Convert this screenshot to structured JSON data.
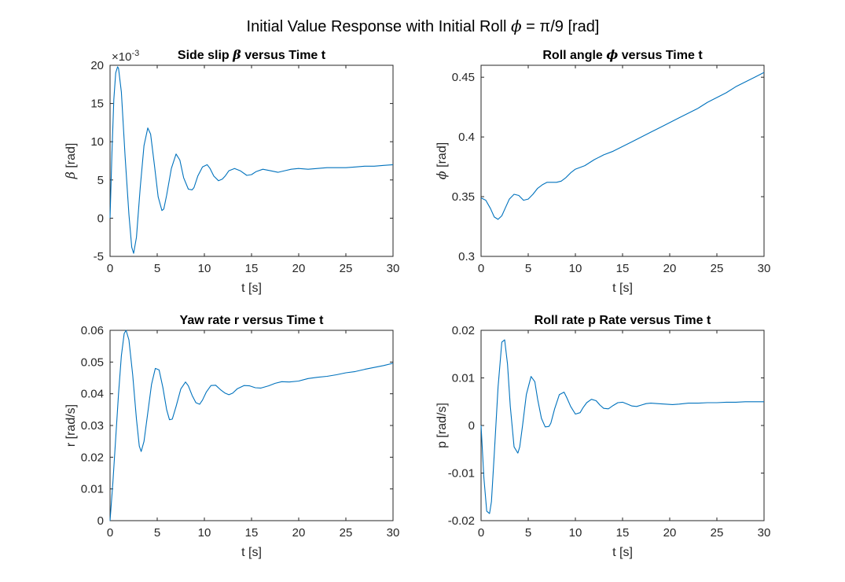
{
  "figure": {
    "title_prefix": "Initial Value Response with Initial Roll ",
    "title_symbol": "ϕ",
    "title_suffix": " = π/9 [rad]"
  },
  "colors": {
    "line": "#0072BD",
    "axes": "#262626",
    "background": "#ffffff"
  },
  "chart_data": [
    {
      "type": "line",
      "title_pre": "Side slip ",
      "title_sym": "β",
      "title_post": " versus Time t",
      "xlabel": "t [s]",
      "ylabel_sym": "β",
      "ylabel_post": " [rad]",
      "exponent_label": "×10",
      "exponent_power": "-3",
      "xlim": [
        0,
        30
      ],
      "ylim": [
        -5,
        20
      ],
      "xticks": [
        "0",
        "5",
        "10",
        "15",
        "20",
        "25",
        "30"
      ],
      "yticks": [
        "-5",
        "0",
        "5",
        "10",
        "15",
        "20"
      ],
      "grid": false,
      "series": [
        {
          "x": [
            0,
            0.2,
            0.4,
            0.6,
            0.8,
            0.9,
            1.2,
            1.6,
            2.0,
            2.3,
            2.5,
            2.8,
            3.2,
            3.6,
            4.0,
            4.3,
            4.7,
            5.1,
            5.5,
            5.7,
            6.0,
            6.5,
            7.0,
            7.4,
            7.8,
            8.3,
            8.7,
            8.9,
            9.3,
            9.8,
            10.3,
            10.6,
            11.0,
            11.5,
            11.9,
            12.2,
            12.6,
            13.2,
            13.8,
            14.5,
            15.0,
            15.5,
            16.2,
            17.0,
            17.8,
            18.5,
            19.2,
            20.0,
            21.0,
            22.0,
            23.0,
            24.0,
            25.0,
            26.0,
            27.0,
            28.0,
            29.0,
            30.0
          ],
          "y": [
            0,
            8.5,
            15.5,
            19.0,
            19.8,
            19.6,
            16.5,
            8.0,
            0.5,
            -3.8,
            -4.6,
            -2.5,
            4.0,
            9.5,
            11.8,
            11.0,
            7.0,
            2.8,
            1.0,
            1.2,
            3.0,
            6.5,
            8.4,
            7.6,
            5.3,
            3.8,
            3.7,
            4.0,
            5.5,
            6.7,
            7.0,
            6.5,
            5.5,
            4.9,
            5.1,
            5.5,
            6.2,
            6.5,
            6.2,
            5.6,
            5.7,
            6.1,
            6.4,
            6.2,
            6.0,
            6.2,
            6.4,
            6.5,
            6.4,
            6.5,
            6.6,
            6.6,
            6.6,
            6.7,
            6.8,
            6.8,
            6.9,
            7.0
          ]
        }
      ]
    },
    {
      "type": "line",
      "title_pre": "Roll angle ",
      "title_sym": "ϕ",
      "title_post": " versus Time t",
      "xlabel": "t [s]",
      "ylabel_sym": "ϕ",
      "ylabel_post": " [rad]",
      "exponent_label": "",
      "exponent_power": "",
      "xlim": [
        0,
        30
      ],
      "ylim": [
        0.3,
        0.46
      ],
      "xticks": [
        "0",
        "5",
        "10",
        "15",
        "20",
        "25",
        "30"
      ],
      "yticks": [
        "0.3",
        "0.35",
        "0.4",
        "0.45"
      ],
      "grid": false,
      "series": [
        {
          "x": [
            0,
            0.5,
            1.0,
            1.4,
            1.8,
            2.2,
            2.6,
            3.0,
            3.5,
            4.0,
            4.5,
            5.0,
            5.5,
            6.0,
            6.5,
            7.0,
            7.5,
            8.0,
            8.5,
            9.0,
            9.5,
            10.0,
            11.0,
            12.0,
            13.0,
            14.0,
            15.0,
            16.0,
            17.0,
            18.0,
            19.0,
            20.0,
            21.0,
            22.0,
            23.0,
            24.0,
            25.0,
            26.0,
            27.0,
            28.0,
            29.0,
            30.0
          ],
          "y": [
            0.349,
            0.347,
            0.34,
            0.333,
            0.331,
            0.334,
            0.341,
            0.348,
            0.352,
            0.351,
            0.347,
            0.348,
            0.352,
            0.357,
            0.36,
            0.362,
            0.362,
            0.362,
            0.363,
            0.366,
            0.37,
            0.373,
            0.376,
            0.381,
            0.385,
            0.388,
            0.392,
            0.396,
            0.4,
            0.404,
            0.408,
            0.412,
            0.416,
            0.42,
            0.424,
            0.429,
            0.433,
            0.437,
            0.442,
            0.446,
            0.45,
            0.454
          ]
        }
      ]
    },
    {
      "type": "line",
      "title_pre": "Yaw rate r versus Time t",
      "title_sym": "",
      "title_post": "",
      "xlabel": "t [s]",
      "ylabel_sym": "",
      "ylabel_post": "r [rad/s]",
      "exponent_label": "",
      "exponent_power": "",
      "xlim": [
        0,
        30
      ],
      "ylim": [
        0,
        0.06
      ],
      "xticks": [
        "0",
        "5",
        "10",
        "15",
        "20",
        "25",
        "30"
      ],
      "yticks": [
        "0",
        "0.01",
        "0.02",
        "0.03",
        "0.04",
        "0.05",
        "0.06"
      ],
      "grid": false,
      "series": [
        {
          "x": [
            0,
            0.3,
            0.6,
            0.9,
            1.2,
            1.5,
            1.7,
            2.0,
            2.4,
            2.8,
            3.1,
            3.3,
            3.6,
            4.0,
            4.4,
            4.8,
            5.2,
            5.6,
            6.0,
            6.3,
            6.6,
            7.0,
            7.5,
            8.0,
            8.3,
            8.7,
            9.1,
            9.5,
            9.8,
            10.2,
            10.7,
            11.2,
            11.7,
            12.2,
            12.6,
            13.0,
            13.5,
            14.2,
            14.8,
            15.4,
            16.0,
            16.8,
            17.5,
            18.2,
            19.0,
            20.0,
            21.0,
            22.0,
            23.0,
            24.0,
            25.0,
            26.0,
            27.0,
            28.0,
            29.0,
            30.0
          ],
          "y": [
            0.0,
            0.012,
            0.026,
            0.04,
            0.052,
            0.059,
            0.06,
            0.057,
            0.046,
            0.032,
            0.0235,
            0.0218,
            0.025,
            0.034,
            0.043,
            0.048,
            0.0475,
            0.042,
            0.035,
            0.0318,
            0.032,
            0.036,
            0.0415,
            0.0437,
            0.0425,
            0.0395,
            0.0372,
            0.0367,
            0.038,
            0.0405,
            0.0426,
            0.0427,
            0.0413,
            0.0402,
            0.0397,
            0.0402,
            0.0416,
            0.0426,
            0.0425,
            0.0419,
            0.0418,
            0.0425,
            0.0433,
            0.0438,
            0.0437,
            0.044,
            0.0448,
            0.0452,
            0.0455,
            0.046,
            0.0466,
            0.047,
            0.0477,
            0.0483,
            0.0489,
            0.0496
          ]
        }
      ]
    },
    {
      "type": "line",
      "title_pre": "Roll rate p Rate versus Time t",
      "title_sym": "",
      "title_post": "",
      "xlabel": "t [s]",
      "ylabel_sym": "",
      "ylabel_post": "p [rad/s]",
      "exponent_label": "",
      "exponent_power": "",
      "xlim": [
        0,
        30
      ],
      "ylim": [
        -0.02,
        0.02
      ],
      "xticks": [
        "0",
        "5",
        "10",
        "15",
        "20",
        "25",
        "30"
      ],
      "yticks": [
        "-0.02",
        "-0.01",
        "0",
        "0.01",
        "0.02"
      ],
      "grid": false,
      "series": [
        {
          "x": [
            0,
            0.3,
            0.6,
            0.9,
            1.1,
            1.4,
            1.8,
            2.2,
            2.5,
            2.8,
            3.1,
            3.5,
            3.9,
            4.1,
            4.4,
            4.8,
            5.3,
            5.7,
            6.0,
            6.4,
            6.8,
            7.2,
            7.4,
            7.8,
            8.3,
            8.8,
            9.1,
            9.5,
            10.0,
            10.5,
            10.8,
            11.2,
            11.7,
            12.2,
            12.6,
            13.0,
            13.5,
            14.0,
            14.5,
            15.0,
            15.5,
            16.0,
            16.5,
            17.0,
            17.5,
            18.0,
            18.7,
            19.5,
            20.3,
            21.0,
            22.0,
            23.0,
            24.0,
            25.0,
            26.0,
            27.0,
            28.0,
            29.0,
            30.0
          ],
          "y": [
            0.0,
            -0.011,
            -0.018,
            -0.0185,
            -0.016,
            -0.006,
            0.008,
            0.0175,
            0.018,
            0.013,
            0.004,
            -0.0045,
            -0.0058,
            -0.0045,
            0.0,
            0.0065,
            0.0103,
            0.0092,
            0.0055,
            0.0015,
            -0.0003,
            -0.0002,
            0.0005,
            0.0035,
            0.0065,
            0.007,
            0.0058,
            0.004,
            0.0024,
            0.0027,
            0.0037,
            0.0048,
            0.0055,
            0.0052,
            0.0043,
            0.0036,
            0.0035,
            0.0042,
            0.0048,
            0.0049,
            0.0045,
            0.0041,
            0.004,
            0.0043,
            0.0046,
            0.0047,
            0.0046,
            0.0045,
            0.0044,
            0.0045,
            0.0047,
            0.0047,
            0.0048,
            0.0048,
            0.0049,
            0.0049,
            0.005,
            0.005,
            0.005
          ]
        }
      ]
    }
  ]
}
